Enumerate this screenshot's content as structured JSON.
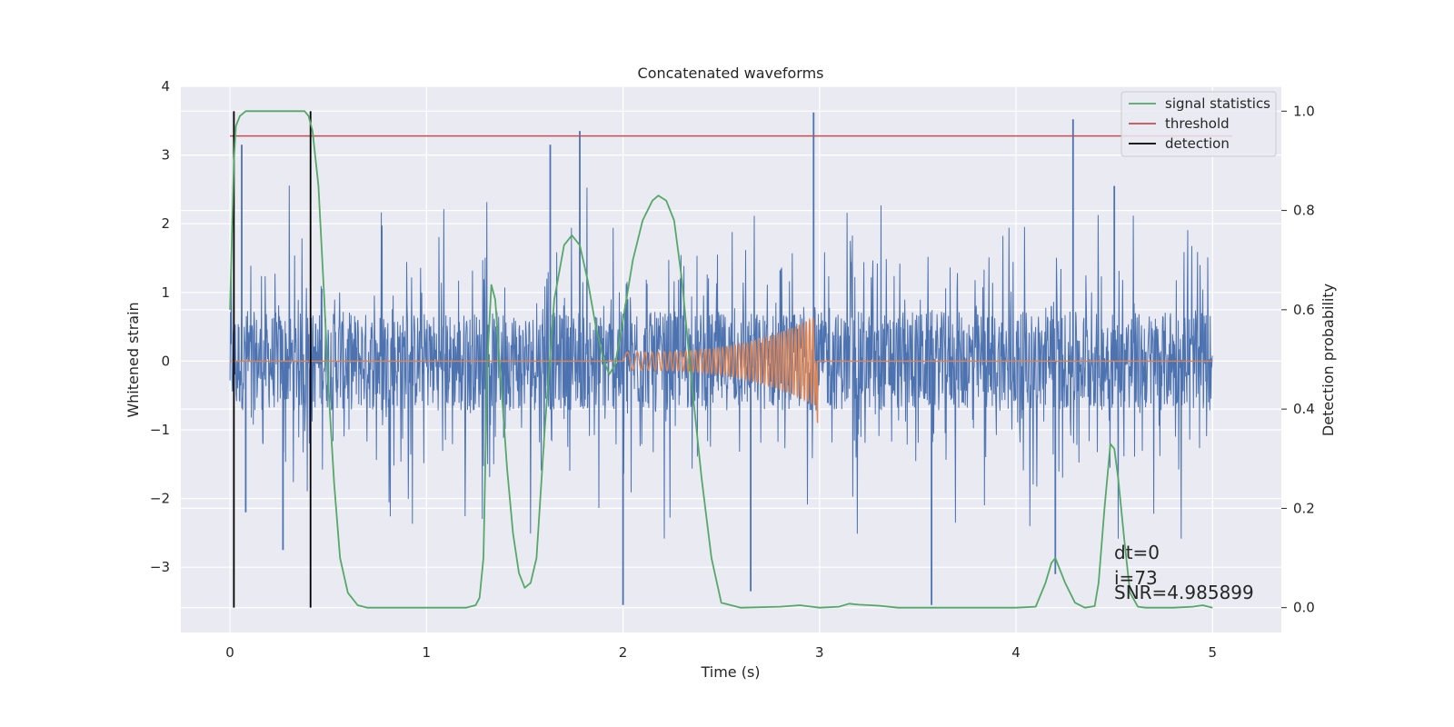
{
  "chart_data": {
    "type": "line",
    "title": "Concatenated waveforms",
    "xlabel": "Time (s)",
    "ylabel": "Whitened strain",
    "ylabel_right": "Detection probability",
    "xlim": [
      -0.25,
      5.35
    ],
    "ylim": [
      -3.95,
      4.0
    ],
    "ylim_right": [
      -0.05,
      1.05
    ],
    "xticks": [
      0,
      1,
      2,
      3,
      4,
      5
    ],
    "xtick_labels": [
      "0",
      "1",
      "2",
      "3",
      "4",
      "5"
    ],
    "yticks": [
      4,
      3,
      2,
      1,
      0,
      -1,
      -2,
      -3
    ],
    "ytick_labels": [
      "4",
      "3",
      "2",
      "1",
      "0",
      "−1",
      "−2",
      "−3"
    ],
    "yticks_right": [
      1.0,
      0.8,
      0.6,
      0.4,
      0.2,
      0.0
    ],
    "ytick_labels_right": [
      "1.0",
      "0.8",
      "0.6",
      "0.4",
      "0.2",
      "0.0"
    ],
    "grid": true,
    "legend_position": "top-right",
    "colors": {
      "strain": "#4c72b0",
      "injection": "#dd8452",
      "signal_statistics": "#55a868",
      "threshold": "#c44e52",
      "detection": "#000000",
      "background": "#eaeaf2",
      "grid": "#ffffff"
    },
    "series": [
      {
        "name": "signal statistics",
        "axis": "right",
        "x": [
          0.0,
          0.01,
          0.02,
          0.03,
          0.05,
          0.08,
          0.12,
          0.2,
          0.3,
          0.38,
          0.4,
          0.42,
          0.45,
          0.48,
          0.5,
          0.53,
          0.56,
          0.6,
          0.65,
          0.7,
          0.9,
          1.1,
          1.2,
          1.25,
          1.27,
          1.29,
          1.31,
          1.33,
          1.35,
          1.38,
          1.41,
          1.44,
          1.47,
          1.5,
          1.53,
          1.56,
          1.6,
          1.65,
          1.7,
          1.74,
          1.78,
          1.82,
          1.86,
          1.9,
          1.93,
          1.96,
          2.0,
          2.05,
          2.1,
          2.15,
          2.18,
          2.22,
          2.26,
          2.3,
          2.35,
          2.4,
          2.45,
          2.5,
          2.6,
          2.8,
          2.9,
          3.0,
          3.1,
          3.15,
          3.2,
          3.3,
          3.4,
          3.5,
          3.6,
          3.8,
          4.0,
          4.1,
          4.15,
          4.18,
          4.2,
          4.22,
          4.25,
          4.3,
          4.35,
          4.4,
          4.42,
          4.45,
          4.48,
          4.5,
          4.52,
          4.55,
          4.58,
          4.62,
          4.66,
          4.7,
          4.8,
          4.9,
          4.95,
          5.0
        ],
        "y": [
          0.6,
          0.75,
          0.9,
          0.97,
          0.99,
          1.0,
          1.0,
          1.0,
          1.0,
          1.0,
          0.99,
          0.96,
          0.85,
          0.62,
          0.45,
          0.25,
          0.1,
          0.03,
          0.005,
          0.0,
          0.0,
          0.0,
          0.0,
          0.005,
          0.02,
          0.1,
          0.5,
          0.65,
          0.62,
          0.45,
          0.28,
          0.15,
          0.07,
          0.04,
          0.05,
          0.1,
          0.35,
          0.62,
          0.73,
          0.75,
          0.73,
          0.66,
          0.57,
          0.5,
          0.47,
          0.49,
          0.58,
          0.7,
          0.78,
          0.82,
          0.83,
          0.82,
          0.78,
          0.66,
          0.45,
          0.26,
          0.1,
          0.01,
          0.0,
          0.002,
          0.005,
          0.0,
          0.002,
          0.008,
          0.006,
          0.004,
          0.0,
          0.0,
          0.0,
          0.0,
          0.0,
          0.002,
          0.05,
          0.09,
          0.1,
          0.08,
          0.05,
          0.01,
          0.0,
          0.003,
          0.05,
          0.2,
          0.33,
          0.32,
          0.26,
          0.14,
          0.03,
          0.002,
          0.0,
          0.0,
          0.0,
          0.002,
          0.005,
          0.0
        ]
      },
      {
        "name": "threshold",
        "axis": "right",
        "x": [
          0.0,
          5.1
        ],
        "y": [
          0.95,
          0.95
        ]
      },
      {
        "name": "detection",
        "axis": "right",
        "type": "vlines",
        "x": [
          0.02,
          0.41
        ],
        "y_range": [
          0.0,
          1.0
        ]
      },
      {
        "name": "",
        "axis": "left",
        "description_type": "noise",
        "x_range": [
          0.0,
          5.0
        ],
        "envelope": 0.72,
        "spike_max": 2.6,
        "spikes": [
          {
            "x": 0.06,
            "y": 3.15
          },
          {
            "x": 1.63,
            "y": 3.15
          },
          {
            "x": 1.78,
            "y": 3.35
          },
          {
            "x": 2.97,
            "y": 3.62
          },
          {
            "x": 4.29,
            "y": 3.52
          },
          {
            "x": 4.5,
            "y": 2.55
          },
          {
            "x": 0.08,
            "y": -2.2
          },
          {
            "x": 2.0,
            "y": -3.55
          },
          {
            "x": 2.65,
            "y": -3.35
          },
          {
            "x": 3.57,
            "y": -3.55
          },
          {
            "x": 4.2,
            "y": -3.1
          },
          {
            "x": 0.27,
            "y": -2.75
          }
        ]
      },
      {
        "name": "",
        "axis": "left",
        "description_type": "chirp",
        "x_range": [
          2.0,
          2.98
        ],
        "amplitude_start": 0.13,
        "amplitude_end": 0.65,
        "cycles": 42
      }
    ],
    "legend": [
      "signal statistics",
      "threshold",
      "detection"
    ],
    "annotations": [
      "dt=0",
      "i=73",
      "SNR=4.985899"
    ]
  }
}
